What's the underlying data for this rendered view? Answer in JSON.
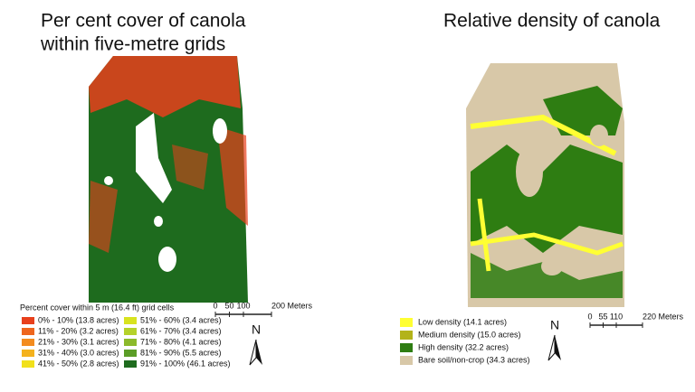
{
  "left": {
    "title": [
      "Per cent cover of canola",
      "within five-metre grids"
    ],
    "legend_title": "Percent cover within 5 m (16.4 ft) grid cells",
    "legend": [
      {
        "label": "0% - 10% (13.8 acres)",
        "color": "#e8401c"
      },
      {
        "label": "11% - 20% (3.2 acres)",
        "color": "#ee661e"
      },
      {
        "label": "21% - 30% (3.1 acres)",
        "color": "#f38c1f"
      },
      {
        "label": "31% - 40% (3.0 acres)",
        "color": "#f4b21e"
      },
      {
        "label": "41% - 50% (2.8 acres)",
        "color": "#f1e01b"
      },
      {
        "label": "51% - 60% (3.4 acres)",
        "color": "#d8e31f"
      },
      {
        "label": "61% - 70% (3.4 acres)",
        "color": "#b5d22a"
      },
      {
        "label": "71% - 80% (4.1 acres)",
        "color": "#8cba2b"
      },
      {
        "label": "81% - 90% (5.5 acres)",
        "color": "#5b9d27"
      },
      {
        "label": "91% - 100% (46.1 acres)",
        "color": "#1e6b1e"
      }
    ],
    "scale": [
      "0",
      "50",
      "100",
      "200 Meters"
    ],
    "north": "N"
  },
  "right": {
    "title": [
      "Relative density of canola"
    ],
    "legend": [
      {
        "label": "Low density (14.1 acres)",
        "color": "#ffff33"
      },
      {
        "label": "Medium density (15.0 acres)",
        "color": "#b3b31a"
      },
      {
        "label": "High density (32.2 acres)",
        "color": "#2e7d12"
      },
      {
        "label": "Bare soil/non-crop (34.3 acres)",
        "color": "#d8c8a8"
      }
    ],
    "scale": [
      "0",
      "55",
      "110",
      "220 Meters"
    ],
    "north": "N"
  }
}
